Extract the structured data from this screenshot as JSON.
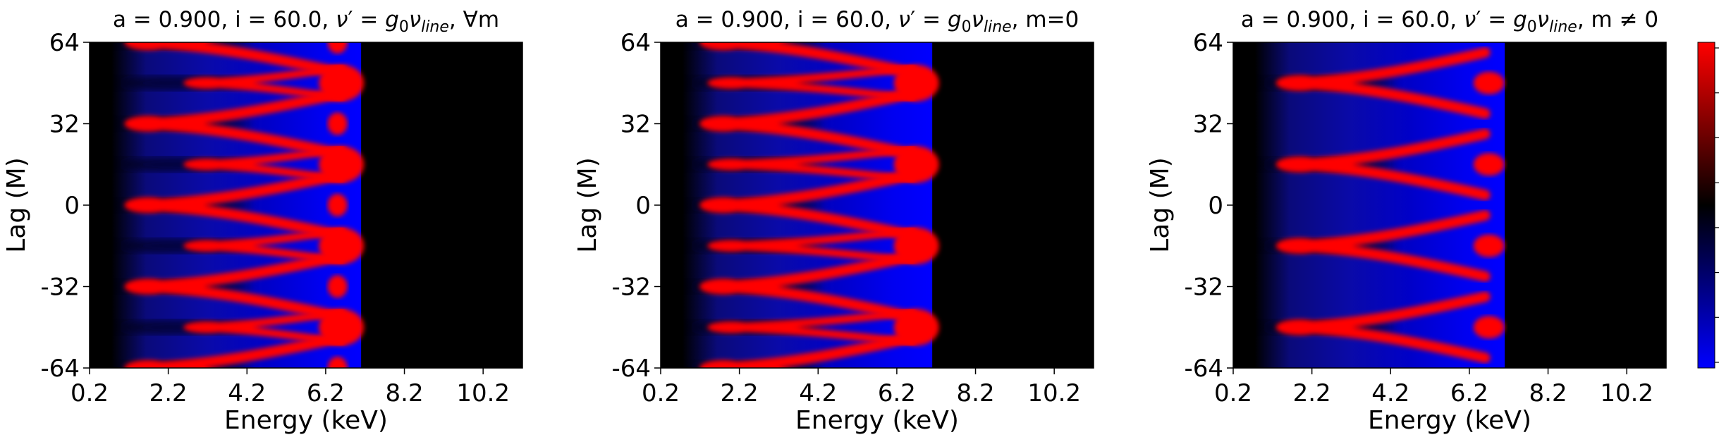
{
  "chart_data": [
    {
      "type": "heatmap",
      "title": "a = 0.900, i = 60.0, ν′ = g₀ν_line, ∀m",
      "title_parts": {
        "prefix": "a = 0.900, i = 60.0, ",
        "nu": "ν",
        "prime": "′ = ",
        "g": "g",
        "g_sub": "0",
        "nu2": "ν",
        "line_sub": "line",
        "suffix": ", ∀m"
      },
      "xlabel": "Energy (keV)",
      "ylabel": "Lag (M)",
      "xlim": [
        0.2,
        11.2
      ],
      "ylim": [
        -64,
        64
      ],
      "x_ticks": [
        0.2,
        2.2,
        4.2,
        6.2,
        8.2,
        10.2
      ],
      "x_tick_labels": [
        "0.2",
        "2.2",
        "4.2",
        "6.2",
        "8.2",
        "10.2"
      ],
      "y_ticks": [
        -64,
        -32,
        0,
        32,
        64
      ],
      "y_tick_labels": [
        "-64",
        "-32",
        "0",
        "32",
        "64"
      ],
      "features": {
        "emission_energy_range_keV": [
          1.2,
          7.1
        ],
        "red_ridge_lag_centers_M": [
          -64,
          -32,
          0,
          32,
          64
        ],
        "red_ridge_tip_energy_keV": 1.3,
        "secondary_ridge_lag_centers_M": [
          -48,
          -16,
          16,
          48
        ],
        "secondary_ridge_tip_energy_keV": 2.8,
        "blob_energy_keV": 6.6
      }
    },
    {
      "type": "heatmap",
      "title": "a = 0.900, i = 60.0, ν′ = g₀ν_line, m=0",
      "title_parts": {
        "prefix": "a = 0.900, i = 60.0, ",
        "nu": "ν",
        "prime": "′ = ",
        "g": "g",
        "g_sub": "0",
        "nu2": "ν",
        "line_sub": "line",
        "suffix": ", m=0"
      },
      "xlabel": "Energy (keV)",
      "ylabel": "Lag (M)",
      "xlim": [
        0.2,
        11.2
      ],
      "ylim": [
        -64,
        64
      ],
      "x_ticks": [
        0.2,
        2.2,
        4.2,
        6.2,
        8.2,
        10.2
      ],
      "x_tick_labels": [
        "0.2",
        "2.2",
        "4.2",
        "6.2",
        "8.2",
        "10.2"
      ],
      "y_ticks": [
        -64,
        -32,
        0,
        32,
        64
      ],
      "y_tick_labels": [
        "-64",
        "-32",
        "0",
        "32",
        "64"
      ],
      "features": {
        "emission_energy_range_keV": [
          1.2,
          7.1
        ],
        "red_ridge_lag_centers_M": [
          -64,
          -32,
          0,
          32,
          64
        ],
        "red_ridge_tip_energy_keV": 1.4,
        "secondary_ridge_lag_centers_M": [
          -48,
          -16,
          16,
          48
        ],
        "secondary_ridge_tip_energy_keV": 1.6,
        "blob_energy_keV": 6.7
      }
    },
    {
      "type": "heatmap",
      "title": "a = 0.900, i = 60.0, ν′ = g₀ν_line, m ≠ 0",
      "title_parts": {
        "prefix": "a = 0.900, i = 60.0, ",
        "nu": "ν",
        "prime": "′ = ",
        "g": "g",
        "g_sub": "0",
        "nu2": "ν",
        "line_sub": "line",
        "suffix": ", m ≠ 0"
      },
      "xlabel": "Energy (keV)",
      "ylabel": "Lag (M)",
      "xlim": [
        0.2,
        11.2
      ],
      "ylim": [
        -64,
        64
      ],
      "x_ticks": [
        0.2,
        2.2,
        4.2,
        6.2,
        8.2,
        10.2
      ],
      "x_tick_labels": [
        "0.2",
        "2.2",
        "4.2",
        "6.2",
        "8.2",
        "10.2"
      ],
      "y_ticks": [
        -64,
        -32,
        0,
        32,
        64
      ],
      "y_tick_labels": [
        "-64",
        "-32",
        "0",
        "32",
        "64"
      ],
      "features": {
        "emission_energy_range_keV": [
          1.2,
          7.1
        ],
        "red_ridge_lag_centers_M": [
          -48,
          -16,
          16,
          48
        ],
        "red_ridge_tip_energy_keV": 1.5,
        "secondary_ridge_lag_centers_M": [],
        "secondary_ridge_tip_energy_keV": null,
        "blob_energy_keV": 6.7
      }
    }
  ],
  "colorbar": {
    "colors": [
      "#0000ff",
      "#000000",
      "#ff0000"
    ],
    "tick_count": 8
  }
}
